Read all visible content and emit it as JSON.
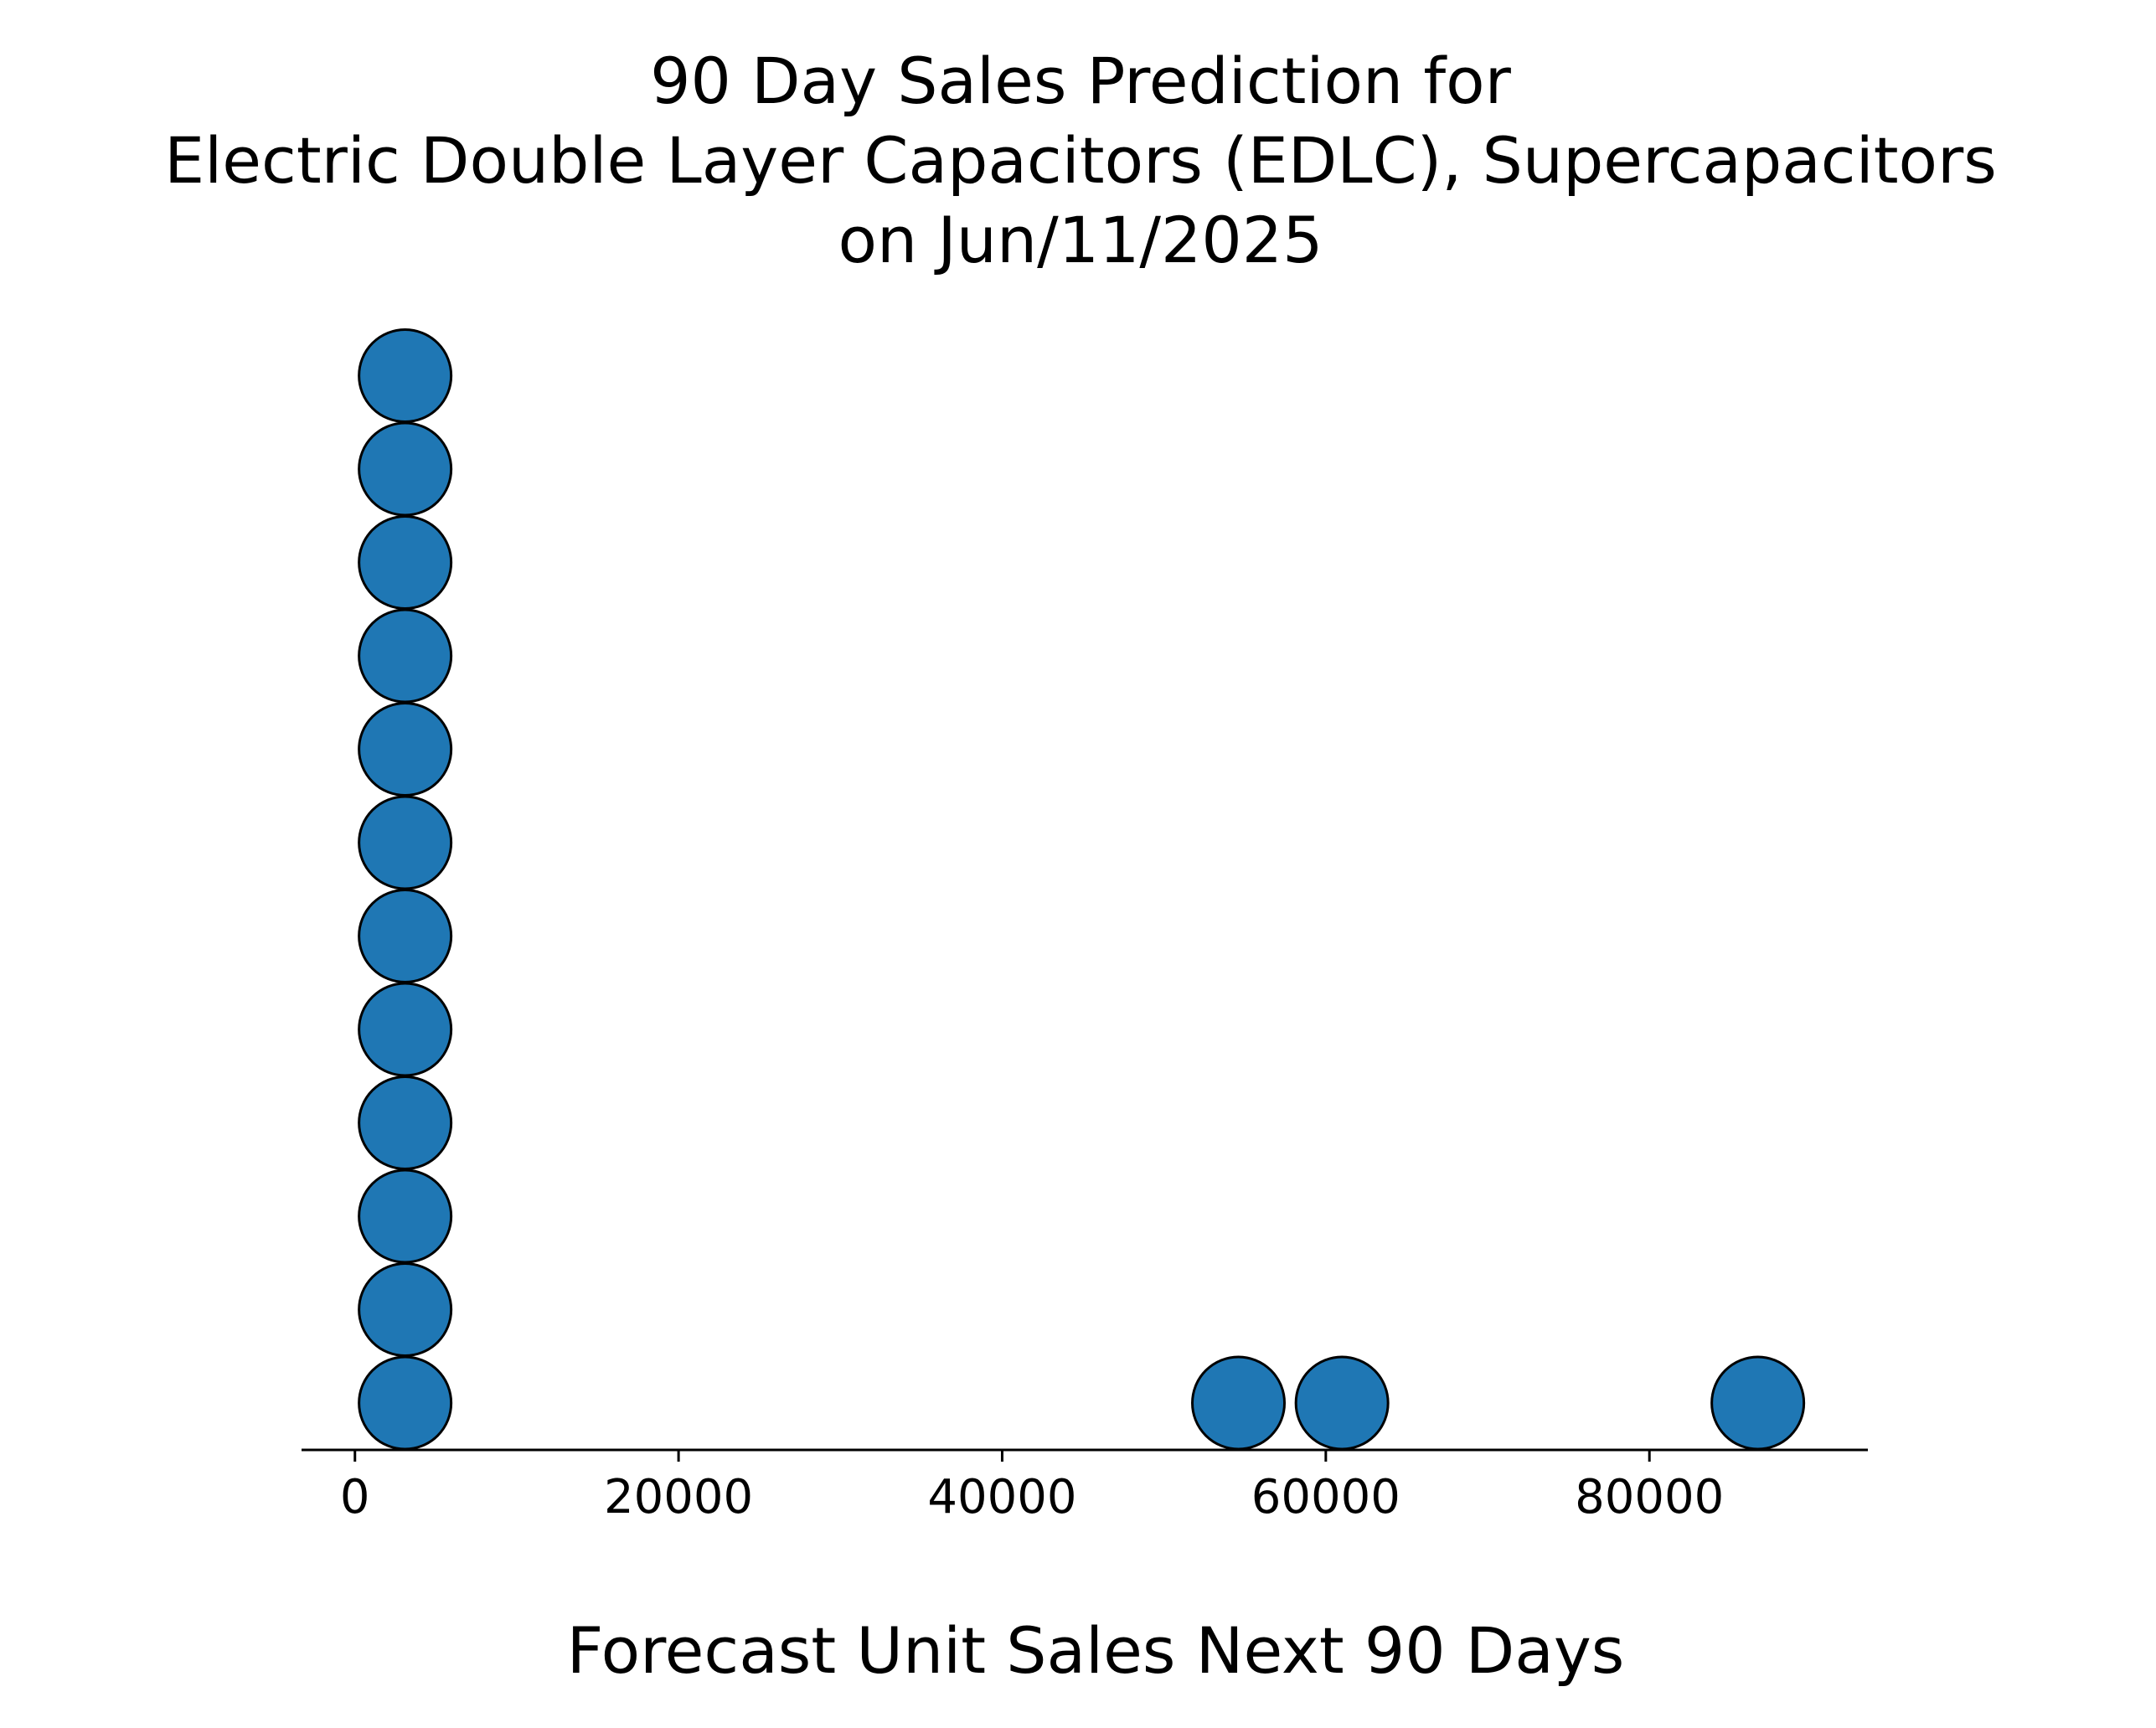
{
  "chart_data": {
    "type": "scatter",
    "subtype": "dot-plot",
    "title": [
      "90 Day Sales Prediction for",
      "Electric Double Layer Capacitors (EDLC), Supercapacitors",
      "on Jun/11/2025"
    ],
    "xlabel": "Forecast Unit Sales Next 90 Days",
    "ylabel": "",
    "xlim": [
      -3300,
      93500
    ],
    "xticks": [
      0,
      20000,
      40000,
      60000,
      80000
    ],
    "xtick_labels": [
      "0",
      "20000",
      "40000",
      "60000",
      "80000"
    ],
    "y_axis_visible": false,
    "grid": false,
    "legend": "none",
    "points": [
      {
        "x": 3100,
        "stack": 0
      },
      {
        "x": 3100,
        "stack": 1
      },
      {
        "x": 3100,
        "stack": 2
      },
      {
        "x": 3100,
        "stack": 3
      },
      {
        "x": 3100,
        "stack": 4
      },
      {
        "x": 3100,
        "stack": 5
      },
      {
        "x": 3100,
        "stack": 6
      },
      {
        "x": 3100,
        "stack": 7
      },
      {
        "x": 3100,
        "stack": 8
      },
      {
        "x": 3100,
        "stack": 9
      },
      {
        "x": 3100,
        "stack": 10
      },
      {
        "x": 3100,
        "stack": 11
      },
      {
        "x": 54600,
        "stack": 0
      },
      {
        "x": 61000,
        "stack": 0
      },
      {
        "x": 86700,
        "stack": 0
      }
    ],
    "marker_color": "#1f77b4",
    "marker_edge_color": "#000000"
  }
}
